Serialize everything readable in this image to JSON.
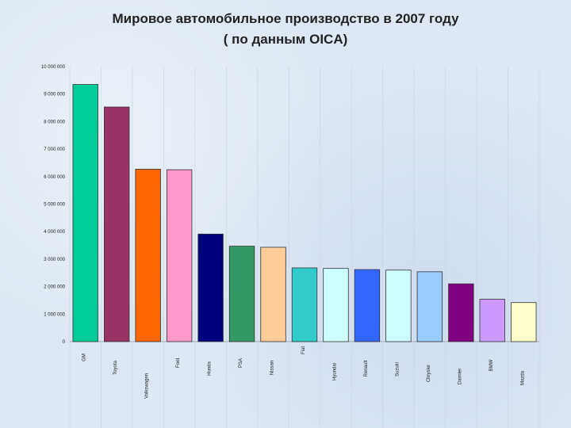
{
  "title_line1": "Мировое автомобильное производство в 2007 году",
  "title_line2": "( по данным OICA)",
  "chart_data": {
    "type": "bar",
    "categories": [
      "GM",
      "Toyota",
      "Volkswagen",
      "Ford",
      "Honda",
      "PSA",
      "Nissan",
      "Fiat",
      "Hyundai",
      "Renault",
      "Suzuki",
      "Chrysler",
      "Daimler",
      "BMW",
      "Mazda"
    ],
    "values": [
      9350000,
      8530000,
      6270000,
      6250000,
      3910000,
      3470000,
      3430000,
      2680000,
      2660000,
      2620000,
      2600000,
      2540000,
      2100000,
      1540000,
      1420000
    ],
    "colors": [
      "#00cc99",
      "#993366",
      "#ff6600",
      "#ff99cc",
      "#000080",
      "#339966",
      "#ffcc99",
      "#33cccc",
      "#ccffff",
      "#3366ff",
      "#ccffff",
      "#99ccff",
      "#800080",
      "#cc99ff",
      "#ffffcc"
    ],
    "y_tick_labels": [
      "0",
      "1 000 000",
      "2 000 000",
      "3 000 000",
      "4 000 000",
      "5 000 000",
      "6 000 000",
      "7 000 000",
      "8 000 000",
      "9 000 000",
      "10 000 000"
    ],
    "ylim": [
      0,
      10000000
    ],
    "grid": false,
    "legend": "none"
  }
}
